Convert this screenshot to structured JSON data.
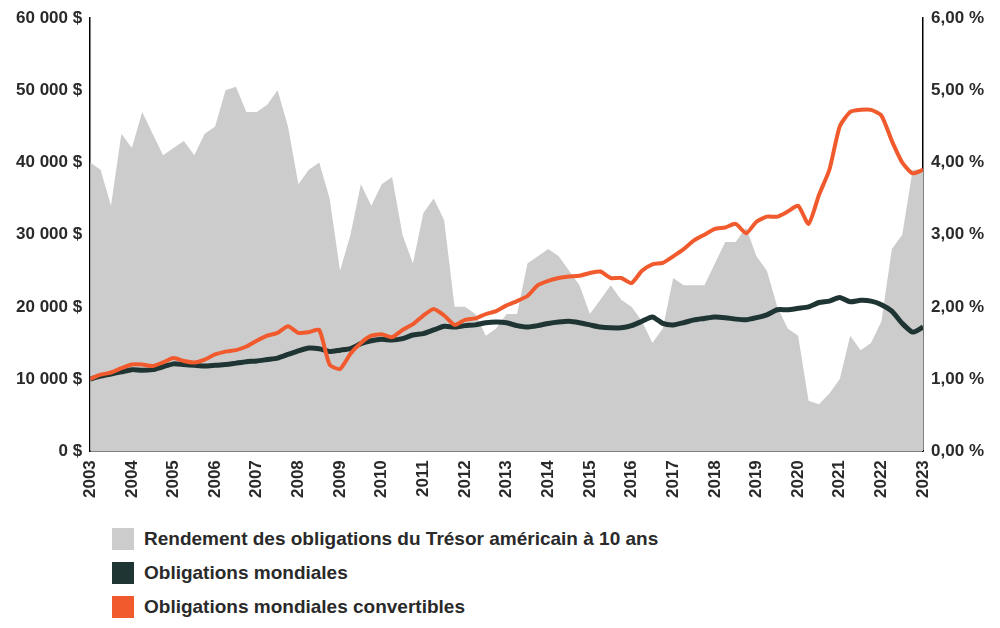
{
  "chart_data": {
    "type": "line",
    "x": [
      2003,
      2003.25,
      2003.5,
      2003.75,
      2004,
      2004.25,
      2004.5,
      2004.75,
      2005,
      2005.25,
      2005.5,
      2005.75,
      2006,
      2006.25,
      2006.5,
      2006.75,
      2007,
      2007.25,
      2007.5,
      2007.75,
      2008,
      2008.25,
      2008.5,
      2008.75,
      2009,
      2009.25,
      2009.5,
      2009.75,
      2010,
      2010.25,
      2010.5,
      2010.75,
      2011,
      2011.25,
      2011.5,
      2011.75,
      2012,
      2012.25,
      2012.5,
      2012.75,
      2013,
      2013.25,
      2013.5,
      2013.75,
      2014,
      2014.25,
      2014.5,
      2014.75,
      2015,
      2015.25,
      2015.5,
      2015.75,
      2016,
      2016.25,
      2016.5,
      2016.75,
      2017,
      2017.25,
      2017.5,
      2017.75,
      2018,
      2018.25,
      2018.5,
      2018.75,
      2019,
      2019.25,
      2019.5,
      2019.75,
      2020,
      2020.25,
      2020.5,
      2020.75,
      2021,
      2021.25,
      2021.5,
      2021.75,
      2022,
      2022.25,
      2022.5,
      2022.75,
      2023
    ],
    "series": [
      {
        "name": "Rendement des obligations du Trésor américain à 10 ans",
        "type": "area",
        "axis": "y2",
        "color": "#cccccc",
        "values": [
          4.0,
          3.9,
          3.4,
          4.4,
          4.2,
          4.7,
          4.4,
          4.1,
          4.2,
          4.3,
          4.1,
          4.4,
          4.5,
          5.0,
          5.05,
          4.7,
          4.7,
          4.8,
          5.0,
          4.5,
          3.7,
          3.9,
          4.0,
          3.5,
          2.5,
          3.0,
          3.7,
          3.4,
          3.7,
          3.8,
          3.0,
          2.6,
          3.3,
          3.5,
          3.2,
          2.0,
          2.0,
          1.9,
          1.6,
          1.7,
          1.9,
          1.9,
          2.6,
          2.7,
          2.8,
          2.7,
          2.5,
          2.3,
          1.9,
          2.1,
          2.3,
          2.1,
          2.0,
          1.8,
          1.5,
          1.7,
          2.4,
          2.3,
          2.3,
          2.3,
          2.6,
          2.9,
          2.9,
          3.1,
          2.7,
          2.5,
          2.0,
          1.7,
          1.6,
          0.7,
          0.65,
          0.8,
          1.0,
          1.6,
          1.4,
          1.5,
          1.8,
          2.8,
          3.0,
          3.9,
          3.9
        ]
      },
      {
        "name": "Obligations mondiales",
        "type": "line",
        "color": "#1f3533",
        "values": [
          10000,
          10400,
          10700,
          11000,
          11300,
          11200,
          11300,
          11700,
          12100,
          12000,
          11900,
          11800,
          11900,
          12000,
          12200,
          12400,
          12500,
          12700,
          12900,
          13400,
          13900,
          14300,
          14200,
          13800,
          14000,
          14200,
          14900,
          15300,
          15500,
          15400,
          15600,
          16100,
          16300,
          16800,
          17300,
          17200,
          17400,
          17500,
          17800,
          17900,
          17800,
          17400,
          17200,
          17400,
          17700,
          17900,
          18000,
          17800,
          17500,
          17200,
          17100,
          17100,
          17400,
          18000,
          18600,
          17700,
          17500,
          17800,
          18200,
          18400,
          18600,
          18500,
          18300,
          18200,
          18500,
          18900,
          19600,
          19600,
          19800,
          20000,
          20600,
          20800,
          21300,
          20700,
          20900,
          20800,
          20300,
          19400,
          17700,
          16500,
          17200
        ]
      },
      {
        "name": "Obligations mondiales convertibles",
        "type": "line",
        "color": "#f05a2c",
        "values": [
          10000,
          10600,
          10900,
          11500,
          12000,
          12000,
          11800,
          12300,
          12900,
          12500,
          12300,
          12700,
          13400,
          13800,
          14000,
          14500,
          15300,
          16000,
          16400,
          17300,
          16400,
          16500,
          16800,
          12000,
          11400,
          13500,
          15000,
          16000,
          16200,
          15800,
          16800,
          17600,
          18800,
          19700,
          18800,
          17500,
          18200,
          18400,
          19000,
          19400,
          20200,
          20800,
          21500,
          23000,
          23600,
          24000,
          24200,
          24300,
          24700,
          24900,
          24000,
          24000,
          23300,
          25000,
          25900,
          26100,
          27000,
          28000,
          29200,
          30000,
          30800,
          31000,
          31500,
          30200,
          31800,
          32500,
          32500,
          33200,
          34000,
          31500,
          35500,
          39000,
          45000,
          47000,
          47300,
          47300,
          46500,
          43000,
          40000,
          38500,
          39000
        ]
      }
    ],
    "xlim": [
      2003,
      2023
    ],
    "xticks": [
      2003,
      2004,
      2005,
      2006,
      2007,
      2008,
      2009,
      2010,
      2011,
      2012,
      2013,
      2014,
      2015,
      2016,
      2017,
      2018,
      2019,
      2020,
      2021,
      2022,
      2023
    ],
    "ylim": [
      0,
      60000
    ],
    "yticks": [
      {
        "value": 0,
        "label": "0 $"
      },
      {
        "value": 10000,
        "label": "10 000 $"
      },
      {
        "value": 20000,
        "label": "20 000 $"
      },
      {
        "value": 30000,
        "label": "30 000 $"
      },
      {
        "value": 40000,
        "label": "40 000 $"
      },
      {
        "value": 50000,
        "label": "50 000 $"
      },
      {
        "value": 60000,
        "label": "60 000 $"
      }
    ],
    "y2lim": [
      0,
      6
    ],
    "y2ticks": [
      {
        "value": 0,
        "label": "0,00 %"
      },
      {
        "value": 1,
        "label": "1,00 %"
      },
      {
        "value": 2,
        "label": "2,00 %"
      },
      {
        "value": 3,
        "label": "3,00 %"
      },
      {
        "value": 4,
        "label": "4,00 %"
      },
      {
        "value": 5,
        "label": "5,00 %"
      },
      {
        "value": 6,
        "label": "6,00 %"
      }
    ],
    "grid": false,
    "legend": "bottom"
  }
}
